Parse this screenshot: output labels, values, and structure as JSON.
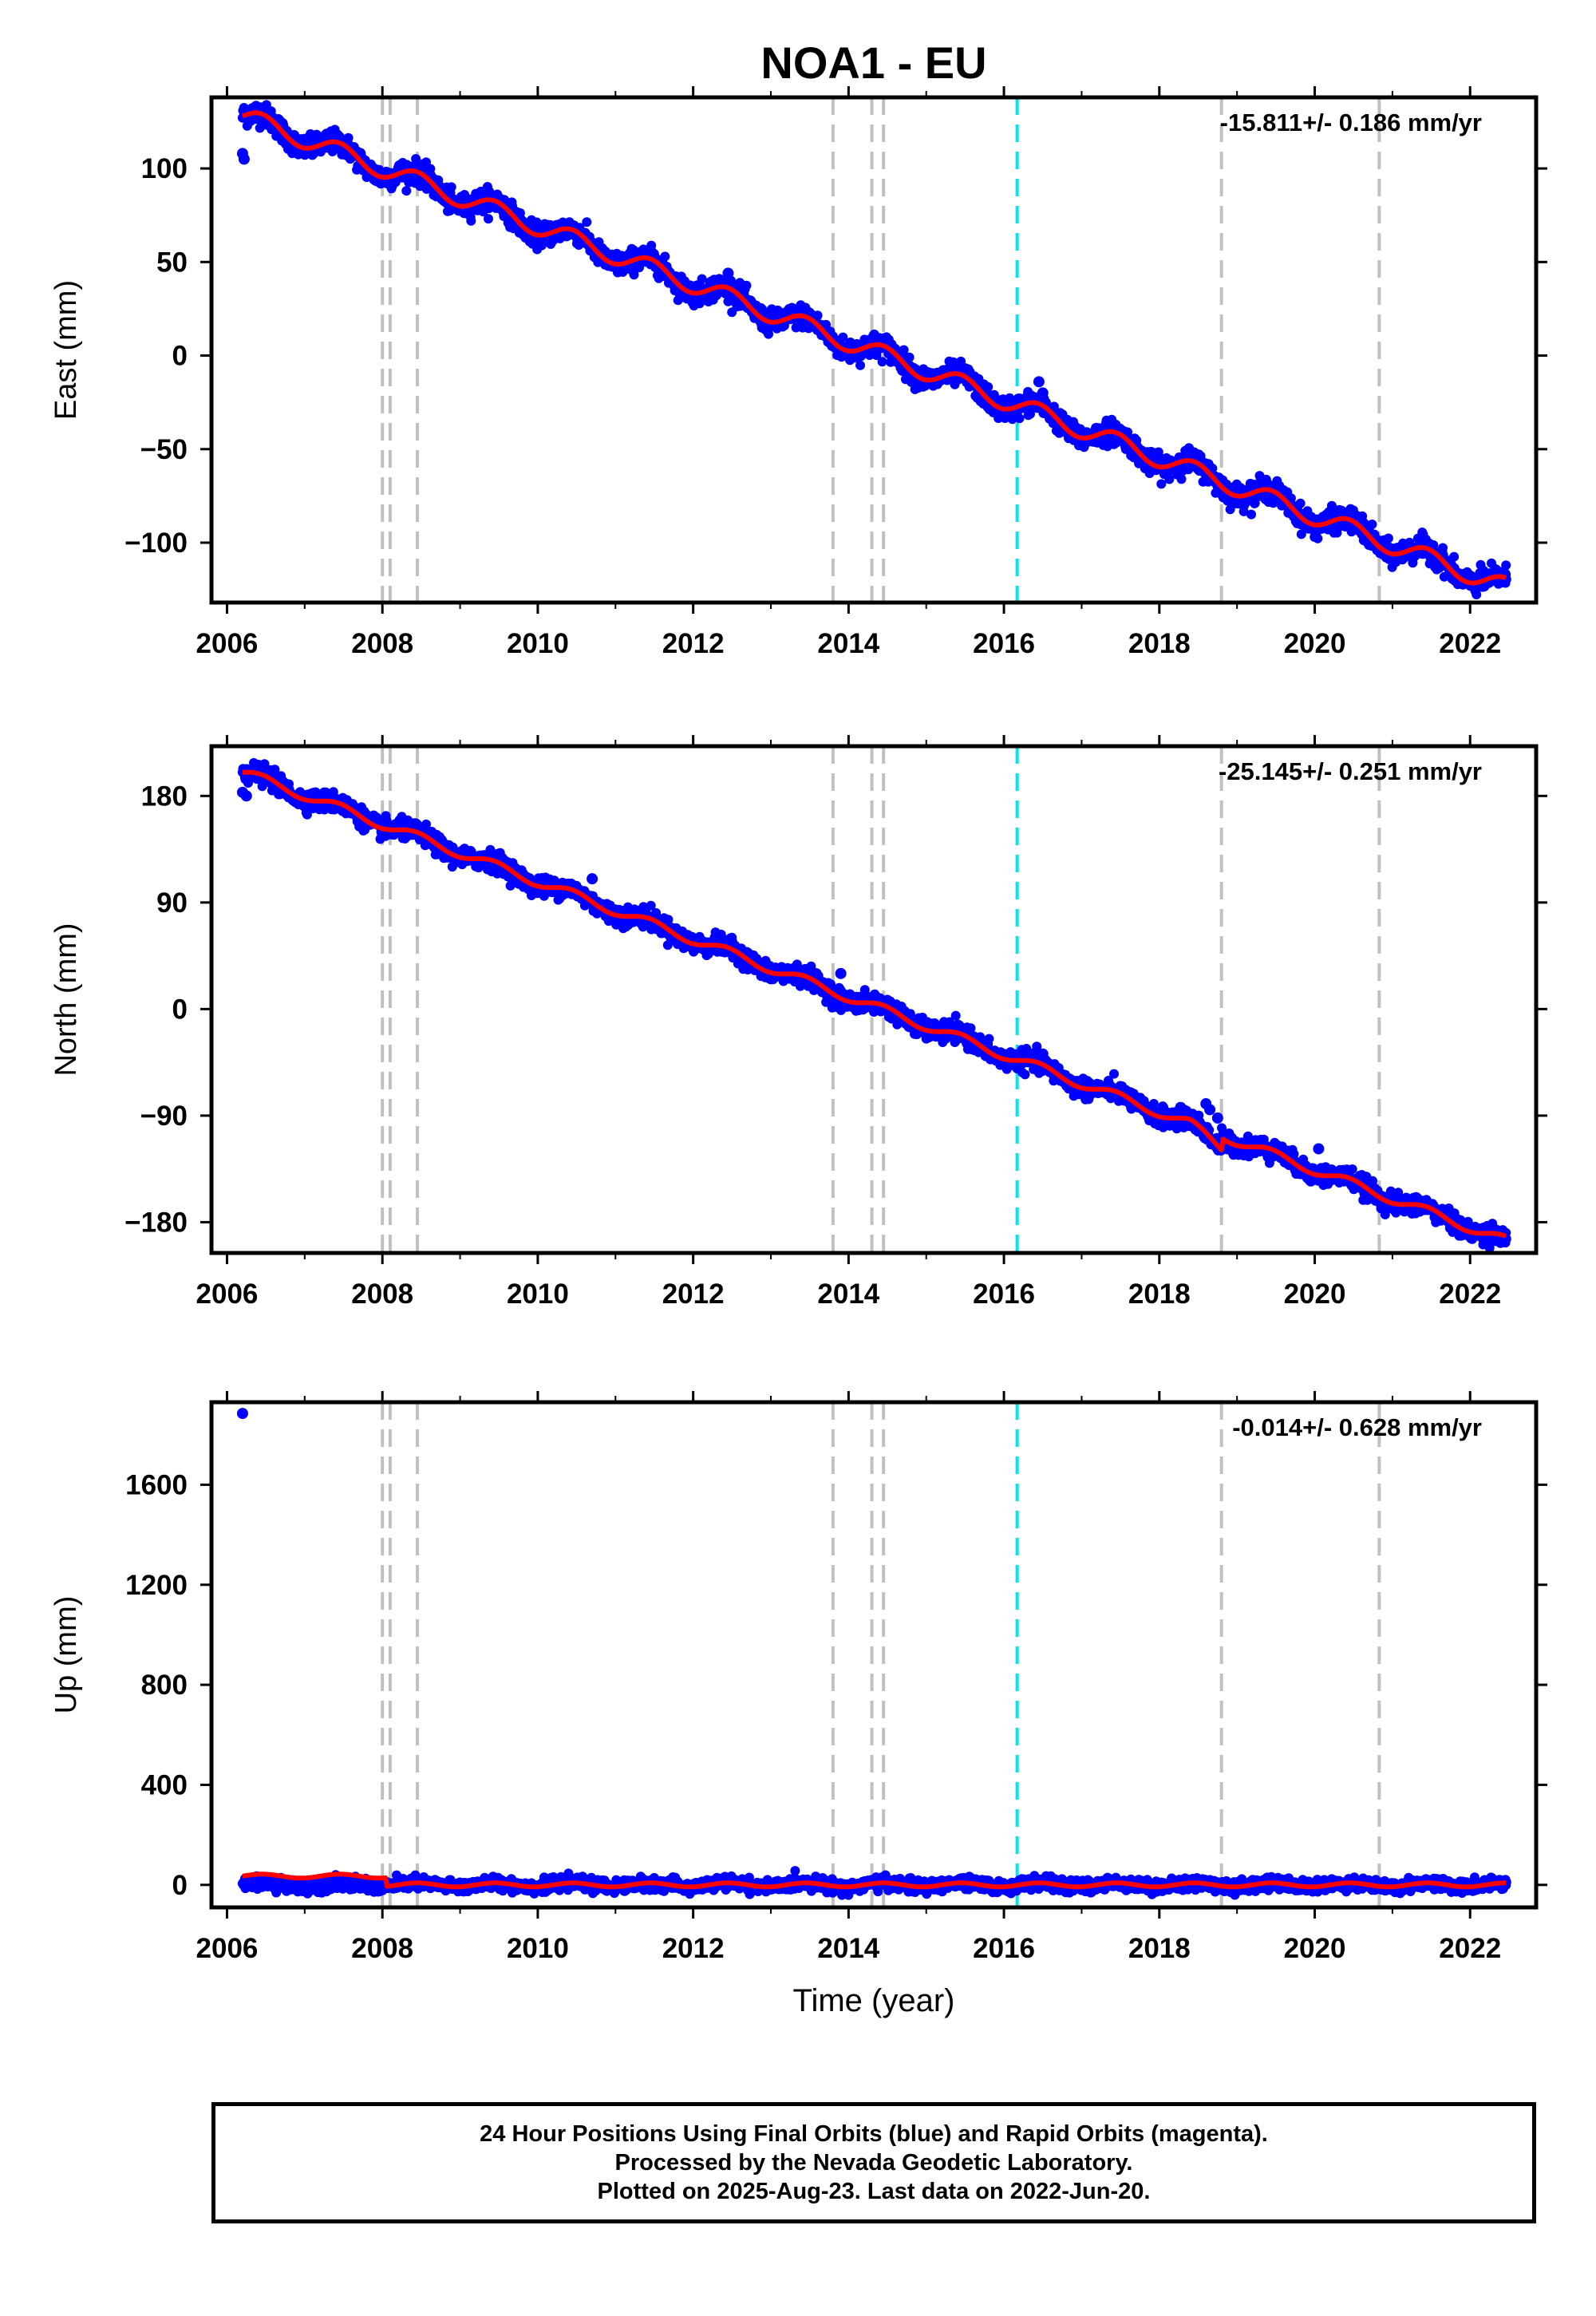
{
  "title": "NOA1 - EU",
  "colors": {
    "data_points": "#0000ff",
    "model_line": "#ff0000",
    "event_lines": "#c0c0c0",
    "antenna_change_line": "#00e5ee",
    "frame": "#000000"
  },
  "chart_data": [
    {
      "type": "scatter",
      "component": "east",
      "ylabel": "East (mm)",
      "xlabel": "",
      "rate_label": "-15.811+/- 0.186 mm/yr",
      "xlim": [
        2005.8,
        2022.85
      ],
      "ylim": [
        -132,
        138
      ],
      "yticks": [
        100,
        50,
        0,
        -50,
        -100
      ],
      "ytick_labels": [
        "100",
        "50",
        "0",
        "−50",
        "−100"
      ],
      "xticks": [
        2006,
        2008,
        2010,
        2012,
        2014,
        2016,
        2018,
        2020,
        2022
      ],
      "xtick_labels": [
        "2006",
        "2008",
        "2010",
        "2012",
        "2014",
        "2016",
        "2018",
        "2020",
        "2022"
      ],
      "x_start": 2006.2,
      "x_end": 2022.47,
      "trend": {
        "start_value": 128,
        "end_value": -124
      },
      "annual_amplitude": 5,
      "scatter_sd": 3,
      "outliers": [
        [
          2006.2,
          108
        ],
        [
          2006.22,
          105
        ],
        [
          2012.45,
          44
        ],
        [
          2016.45,
          -14
        ],
        [
          2016.5,
          -20
        ],
        [
          2022.45,
          -117
        ]
      ]
    },
    {
      "type": "scatter",
      "component": "north",
      "ylabel": "North (mm)",
      "xlabel": "",
      "rate_label": "-25.145+/- 0.251 mm/yr",
      "xlim": [
        2005.8,
        2022.85
      ],
      "ylim": [
        -206,
        222
      ],
      "yticks": [
        180,
        90,
        0,
        -90,
        -180
      ],
      "ytick_labels": [
        "180",
        "90",
        "0",
        "−90",
        "−180"
      ],
      "xticks": [
        2006,
        2008,
        2010,
        2012,
        2014,
        2016,
        2018,
        2020,
        2022
      ],
      "xtick_labels": [
        "2006",
        "2008",
        "2010",
        "2012",
        "2014",
        "2016",
        "2018",
        "2020",
        "2022"
      ],
      "x_start": 2006.2,
      "x_end": 2022.47,
      "trend": {
        "start_value": 200,
        "end_value": -196
      },
      "annual_amplitude": 4,
      "scatter_sd": 4,
      "offset_jump": {
        "x": 2018.8,
        "before": -10,
        "after": 0
      },
      "outliers": [
        [
          2006.2,
          183
        ],
        [
          2006.25,
          180
        ],
        [
          2010.7,
          110
        ],
        [
          2013.9,
          30
        ],
        [
          2015.3,
          -20
        ],
        [
          2016.5,
          -38
        ],
        [
          2018.6,
          -80
        ],
        [
          2018.65,
          -85
        ],
        [
          2018.75,
          -92
        ],
        [
          2020.05,
          -118
        ]
      ]
    },
    {
      "type": "scatter",
      "component": "up",
      "ylabel": "Up (mm)",
      "xlabel": "Time (year)",
      "rate_label": "-0.014+/- 0.628 mm/yr",
      "xlim": [
        2005.8,
        2022.85
      ],
      "ylim": [
        -90,
        1930
      ],
      "yticks": [
        1600,
        1200,
        800,
        400,
        0
      ],
      "ytick_labels": [
        "1600",
        "1200",
        "800",
        "400",
        "0"
      ],
      "xticks": [
        2006,
        2008,
        2010,
        2012,
        2014,
        2016,
        2018,
        2020,
        2022
      ],
      "xtick_labels": [
        "2006",
        "2008",
        "2010",
        "2012",
        "2014",
        "2016",
        "2018",
        "2020",
        "2022"
      ],
      "x_start": 2006.2,
      "x_end": 2022.47,
      "trend": {
        "start_value": 0,
        "end_value": 0
      },
      "annual_amplitude": 8,
      "scatter_sd": 12,
      "model_early_offset": {
        "until": 2008.05,
        "value": 35
      },
      "outliers": [
        [
          2006.2,
          1885
        ]
      ]
    }
  ],
  "event_lines": {
    "gray": [
      2008.0,
      2008.1,
      2008.45,
      2013.8,
      2014.3,
      2014.45,
      2018.8,
      2020.83
    ],
    "cyan": [
      2016.17
    ]
  },
  "footer": {
    "line1": "24 Hour Positions Using Final Orbits (blue) and Rapid Orbits (magenta).",
    "line2": "Processed by the Nevada Geodetic Laboratory.",
    "line3": "Plotted on 2025-Aug-23. Last data on 2022-Jun-20."
  }
}
